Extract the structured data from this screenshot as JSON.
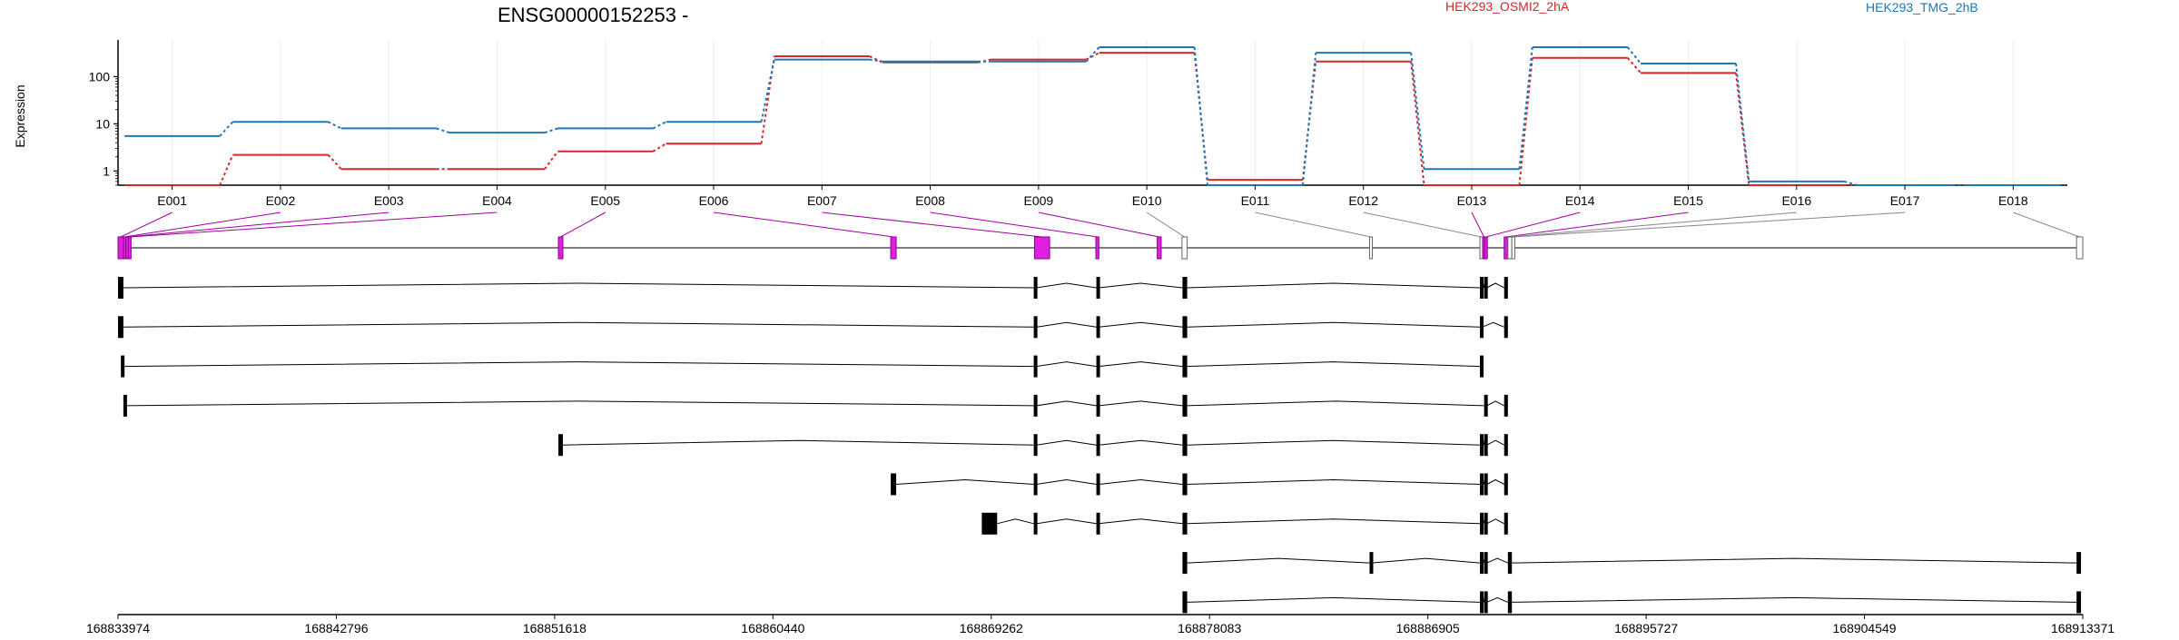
{
  "chart_data": {
    "type": "line",
    "title": "ENSG00000152253 -",
    "ylabel": "Expression",
    "yscale": "log",
    "ylim": [
      0.5,
      600
    ],
    "yticks": [
      "1",
      "10",
      "100"
    ],
    "grid": "vertical",
    "legend": "top-right",
    "categories": [
      "E001",
      "E002",
      "E003",
      "E004",
      "E005",
      "E006",
      "E007",
      "E008",
      "E009",
      "E010",
      "E011",
      "E012",
      "E013",
      "E014",
      "E015",
      "E016",
      "E017",
      "E018"
    ],
    "series": [
      {
        "name": "HEK293_OSMI2_2hA",
        "color": "#d62728",
        "values": [
          0.5,
          2.2,
          1.1,
          1.1,
          2.6,
          3.8,
          270,
          200,
          230,
          320,
          0.65,
          210,
          0.5,
          250,
          120,
          0.5,
          0.5,
          0.5
        ]
      },
      {
        "name": "HEK293_TMG_2hB",
        "color": "#1f77b4",
        "values": [
          5.5,
          11,
          8,
          6.5,
          8,
          11,
          230,
          210,
          210,
          420,
          0.5,
          320,
          1.1,
          420,
          190,
          0.6,
          0.5,
          0.5
        ]
      }
    ],
    "genomic_ticks": [
      "168833974",
      "168842796",
      "168851618",
      "168860440",
      "168869262",
      "168878083",
      "168886905",
      "168895727",
      "168904549",
      "168913371"
    ],
    "genomic_range": [
      168833974,
      168913371
    ],
    "exons": [
      {
        "id": "E001",
        "start": 168833974,
        "end": 168834190,
        "hl": true
      },
      {
        "id": "E002",
        "start": 168834190,
        "end": 168834290,
        "hl": true
      },
      {
        "id": "E003",
        "start": 168834290,
        "end": 168834390,
        "hl": true
      },
      {
        "id": "E004",
        "start": 168834390,
        "end": 168834500,
        "hl": true
      },
      {
        "id": "E005",
        "start": 168851770,
        "end": 168851950,
        "hl": true
      },
      {
        "id": "E006",
        "start": 168865200,
        "end": 168865420,
        "hl": true
      },
      {
        "id": "E007",
        "start": 168871010,
        "end": 168871620,
        "hl": true
      },
      {
        "id": "E008",
        "start": 168873490,
        "end": 168873610,
        "hl": true
      },
      {
        "id": "E009",
        "start": 168875970,
        "end": 168876130,
        "hl": true
      },
      {
        "id": "E010",
        "start": 168876970,
        "end": 168877180,
        "hl": false
      },
      {
        "id": "E011",
        "start": 168884550,
        "end": 168884640,
        "hl": false
      },
      {
        "id": "E012",
        "start": 168889010,
        "end": 168889100,
        "hl": false
      },
      {
        "id": "E013",
        "start": 168889120,
        "end": 168889200,
        "hl": true
      },
      {
        "id": "E014",
        "start": 168889200,
        "end": 168889300,
        "hl": true
      },
      {
        "id": "E015",
        "start": 168889990,
        "end": 168890140,
        "hl": true
      },
      {
        "id": "E016",
        "start": 168890140,
        "end": 168890300,
        "hl": false
      },
      {
        "id": "E017",
        "start": 168890300,
        "end": 168890420,
        "hl": false
      },
      {
        "id": "E018",
        "start": 168913120,
        "end": 168913371,
        "hl": false
      }
    ],
    "transcripts": [
      [
        [
          168833974,
          168834190
        ],
        [
          168870980,
          168871090
        ],
        [
          168873510,
          168873610
        ],
        [
          168876990,
          168877180
        ],
        [
          168889010,
          168889100
        ],
        [
          168889180,
          168889290
        ],
        [
          168889990,
          168890140
        ]
      ],
      [
        [
          168833974,
          168834190
        ],
        [
          168870980,
          168871090
        ],
        [
          168873510,
          168873610
        ],
        [
          168876990,
          168877180
        ],
        [
          168889010,
          168889100
        ],
        [
          168889990,
          168890140
        ]
      ],
      [
        [
          168834090,
          168834190
        ],
        [
          168870980,
          168871090
        ],
        [
          168873510,
          168873610
        ],
        [
          168876990,
          168877180
        ],
        [
          168889010,
          168889100
        ]
      ],
      [
        [
          168834190,
          168834240
        ],
        [
          168870980,
          168871090
        ],
        [
          168873510,
          168873610
        ],
        [
          168876990,
          168877180
        ],
        [
          168889180,
          168889290
        ],
        [
          168889990,
          168890140
        ]
      ],
      [
        [
          168851770,
          168851950
        ],
        [
          168870980,
          168871090
        ],
        [
          168873510,
          168873610
        ],
        [
          168876990,
          168877180
        ],
        [
          168889010,
          168889100
        ],
        [
          168889180,
          168889290
        ],
        [
          168889990,
          168890140
        ]
      ],
      [
        [
          168865200,
          168865420
        ],
        [
          168870980,
          168871090
        ],
        [
          168873510,
          168873610
        ],
        [
          168876990,
          168877180
        ],
        [
          168889010,
          168889100
        ],
        [
          168889180,
          168889290
        ],
        [
          168889990,
          168890140
        ]
      ],
      [
        [
          168868880,
          168869500
        ],
        [
          168870980,
          168871090
        ],
        [
          168873510,
          168873610
        ],
        [
          168876990,
          168877180
        ],
        [
          168889010,
          168889100
        ],
        [
          168889180,
          168889290
        ],
        [
          168889990,
          168890140
        ]
      ],
      [
        [
          168876990,
          168877180
        ],
        [
          168884550,
          168884640
        ],
        [
          168889010,
          168889100
        ],
        [
          168889180,
          168889290
        ],
        [
          168890140,
          168890300
        ],
        [
          168913120,
          168913300
        ]
      ],
      [
        [
          168876990,
          168877180
        ],
        [
          168889010,
          168889100
        ],
        [
          168889180,
          168889290
        ],
        [
          168890140,
          168890300
        ],
        [
          168913120,
          168913300
        ]
      ]
    ]
  }
}
